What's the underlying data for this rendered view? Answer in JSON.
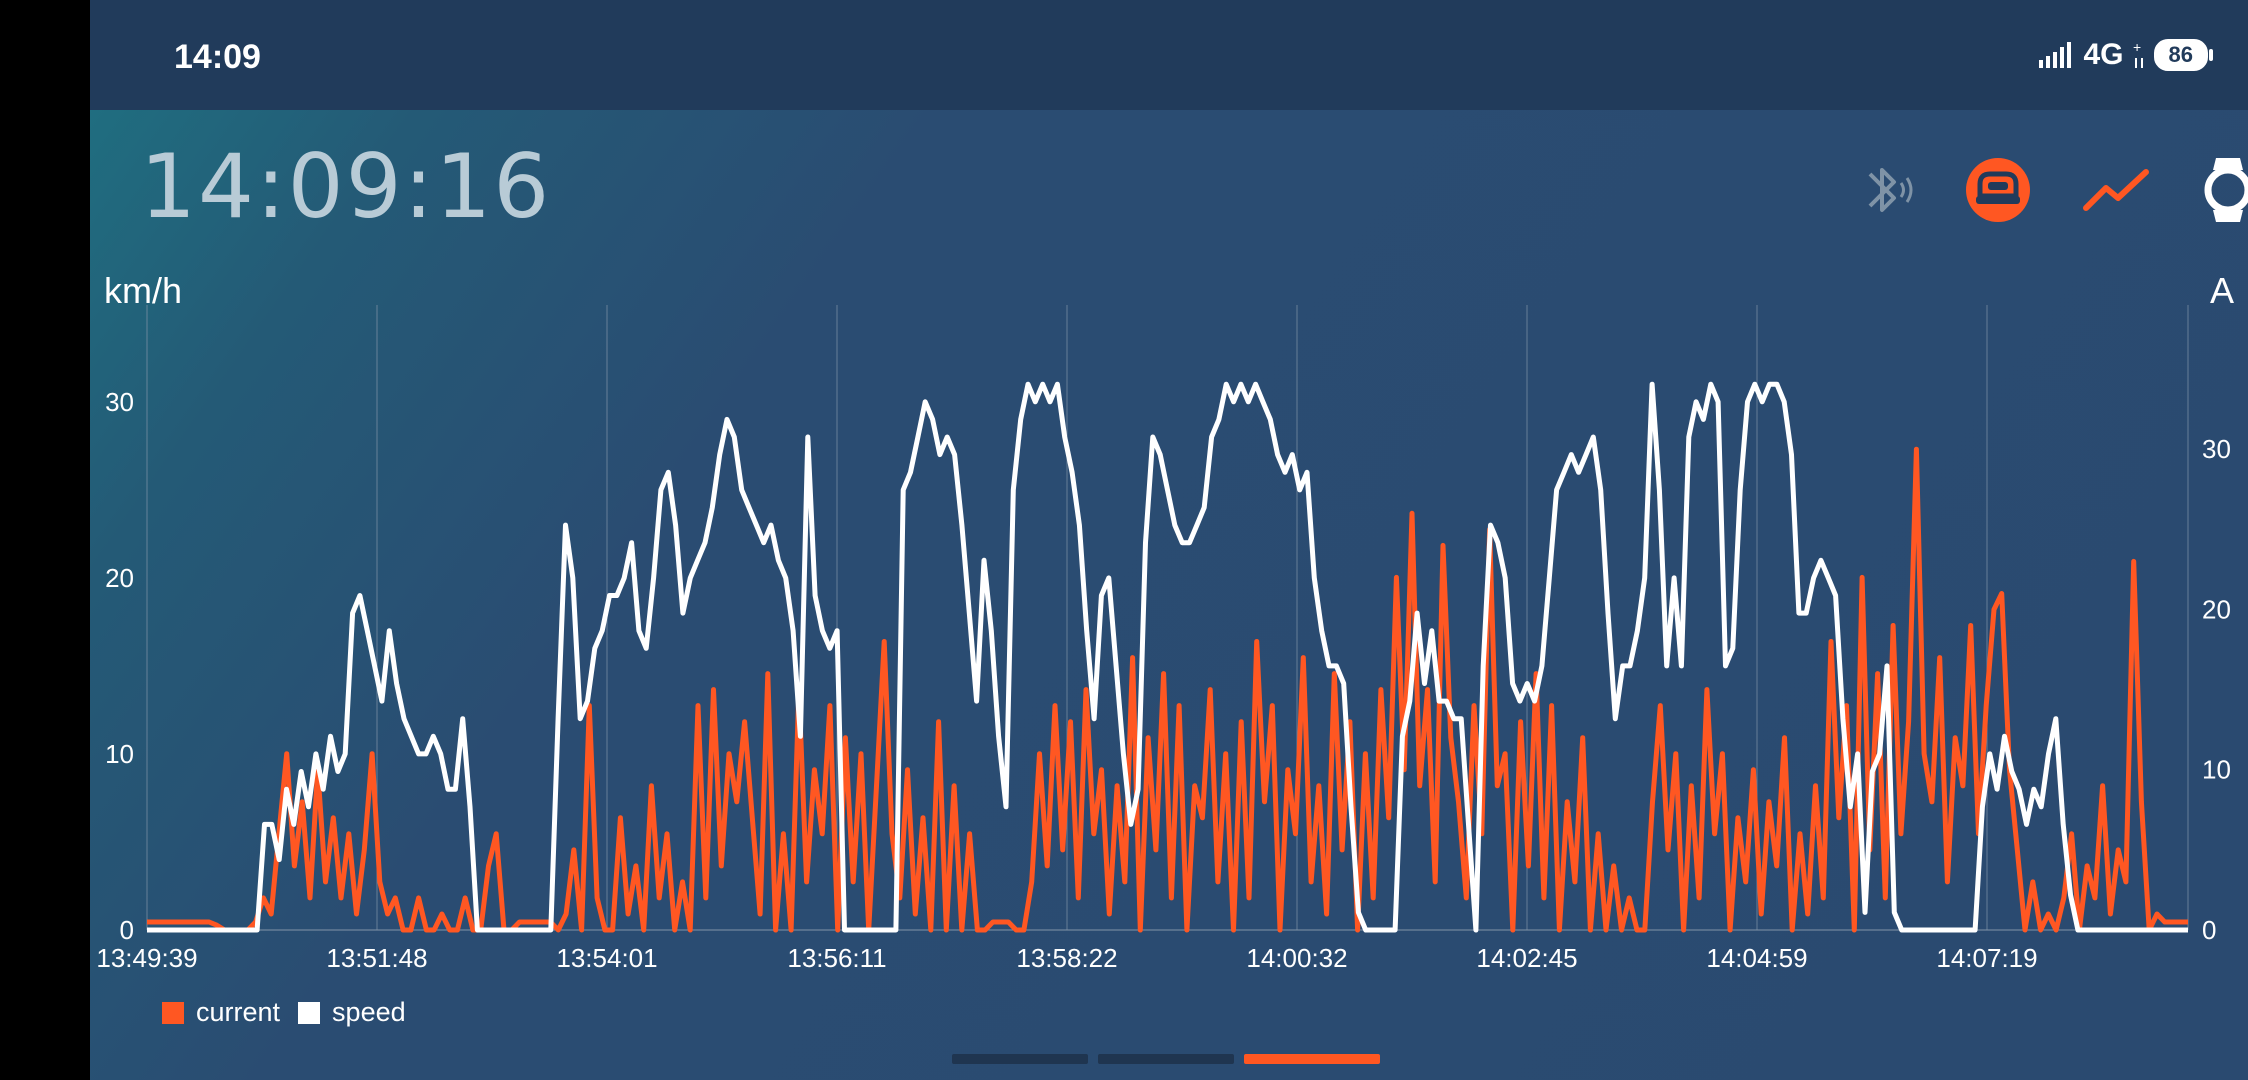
{
  "status_bar": {
    "time": "14:09",
    "network": "4G",
    "battery": "86"
  },
  "header": {
    "clock": "14:09:16"
  },
  "icons": {
    "bluetooth": "bluetooth-icon",
    "ride": "wheel-icon",
    "chart": "chart-icon",
    "watch": "watch-icon"
  },
  "colors": {
    "current": "#ff5722",
    "speed": "#ffffff",
    "background": "#2a4a70",
    "status_bar": "#213b5b"
  },
  "chart_data": {
    "type": "line",
    "ylabel_left": "km/h",
    "ylabel_right": "A",
    "x_ticks": [
      "13:49:39",
      "13:51:48",
      "13:54:01",
      "13:56:11",
      "13:58:22",
      "14:00:32",
      "14:02:45",
      "14:04:59",
      "14:07:19"
    ],
    "ylim_left": [
      0,
      35.5
    ],
    "ylim_right": [
      0,
      39
    ],
    "yticks_left": [
      0,
      10,
      20,
      30
    ],
    "yticks_right": [
      0,
      10,
      20,
      30
    ],
    "grid": "vertical",
    "legend": "bottom-left",
    "series": [
      {
        "name": "current",
        "axis": "right",
        "values": [
          0.5,
          0.5,
          0.5,
          0.5,
          0.5,
          0.5,
          0.5,
          0.5,
          0.5,
          0.3,
          0,
          0,
          0,
          0,
          0.5,
          2,
          1,
          6,
          11,
          4,
          8,
          2,
          10,
          3,
          7,
          2,
          6,
          1,
          5,
          11,
          3,
          1,
          2,
          0,
          0,
          2,
          0,
          0,
          1,
          0,
          0,
          2,
          0,
          0,
          4,
          6,
          0,
          0,
          0.5,
          0.5,
          0.5,
          0.5,
          0.5,
          0,
          1,
          5,
          0,
          14,
          2,
          0,
          0,
          7,
          1,
          4,
          0,
          9,
          2,
          6,
          0,
          3,
          0,
          14,
          2,
          15,
          4,
          11,
          8,
          13,
          7,
          1,
          16,
          0,
          6,
          0,
          15,
          3,
          10,
          6,
          14,
          0,
          12,
          3,
          11,
          0,
          9,
          18,
          6,
          2,
          10,
          1,
          7,
          0,
          13,
          0,
          9,
          0,
          6,
          0,
          0,
          0.5,
          0.5,
          0.5,
          0,
          0,
          3,
          11,
          4,
          14,
          5,
          13,
          2,
          15,
          6,
          10,
          1,
          9,
          3,
          17,
          0,
          12,
          5,
          16,
          2,
          14,
          0,
          9,
          7,
          15,
          3,
          11,
          0,
          13,
          2,
          18,
          8,
          14,
          0,
          10,
          6,
          17,
          3,
          9,
          1,
          16,
          5,
          13,
          0,
          11,
          2,
          15,
          7,
          22,
          10,
          26,
          9,
          15,
          3,
          24,
          12,
          8,
          2,
          14,
          6,
          25,
          9,
          11,
          0,
          13,
          4,
          16,
          2,
          14,
          0,
          8,
          3,
          12,
          0,
          6,
          0,
          4,
          0,
          2,
          0,
          0,
          8,
          14,
          5,
          11,
          0,
          9,
          2,
          15,
          6,
          11,
          0,
          7,
          3,
          10,
          1,
          8,
          4,
          12,
          0,
          6,
          1,
          9,
          2,
          18,
          7,
          14,
          0,
          22,
          5,
          16,
          2,
          19,
          6,
          13,
          30,
          11,
          8,
          17,
          3,
          12,
          9,
          19,
          6,
          14,
          20,
          21,
          10,
          5,
          0,
          3,
          0,
          1,
          0,
          2,
          6,
          0,
          4,
          2,
          9,
          1,
          5,
          3,
          23,
          8,
          0,
          1,
          0.5,
          0.5,
          0.5,
          0.5
        ]
      },
      {
        "name": "speed",
        "axis": "left",
        "values": [
          0,
          0,
          0,
          0,
          0,
          0,
          0,
          0,
          0,
          0,
          0,
          0,
          0,
          0,
          0,
          0,
          6,
          6,
          4,
          8,
          6,
          9,
          7,
          10,
          8,
          11,
          9,
          10,
          18,
          19,
          17,
          15,
          13,
          17,
          14,
          12,
          11,
          10,
          10,
          11,
          10,
          8,
          8,
          12,
          7,
          0,
          0,
          0,
          0,
          0,
          0,
          0,
          0,
          0,
          0,
          0,
          12,
          23,
          20,
          12,
          13,
          16,
          17,
          19,
          19,
          20,
          22,
          17,
          16,
          20,
          25,
          26,
          23,
          18,
          20,
          21,
          22,
          24,
          27,
          29,
          28,
          25,
          24,
          23,
          22,
          23,
          21,
          20,
          17,
          11,
          28,
          19,
          17,
          16,
          17,
          0,
          0,
          0,
          0,
          0,
          0,
          0,
          0,
          25,
          26,
          28,
          30,
          29,
          27,
          28,
          27,
          23,
          18,
          13,
          21,
          17,
          11,
          7,
          25,
          29,
          31,
          30,
          31,
          30,
          31,
          28,
          26,
          23,
          17,
          12,
          19,
          20,
          15,
          10,
          6,
          8,
          22,
          28,
          27,
          25,
          23,
          22,
          22,
          23,
          24,
          28,
          29,
          31,
          30,
          31,
          30,
          31,
          30,
          29,
          27,
          26,
          27,
          25,
          26,
          20,
          17,
          15,
          15,
          14,
          7,
          1,
          0,
          0,
          0,
          0,
          0,
          11,
          13,
          18,
          14,
          17,
          13,
          13,
          12,
          12,
          6,
          0,
          15,
          23,
          22,
          20,
          14,
          13,
          14,
          13,
          15,
          20,
          25,
          26,
          27,
          26,
          27,
          28,
          25,
          18,
          12,
          15,
          15,
          17,
          20,
          31,
          25,
          15,
          20,
          15,
          28,
          30,
          29,
          31,
          30,
          15,
          16,
          25,
          30,
          31,
          30,
          31,
          31,
          30,
          27,
          18,
          18,
          20,
          21,
          20,
          19,
          12,
          7,
          10,
          1,
          9,
          10,
          15,
          1,
          0,
          0,
          0,
          0,
          0,
          0,
          0,
          0,
          0,
          0,
          0,
          7,
          10,
          8,
          11,
          9,
          8,
          6,
          8,
          7,
          10,
          12,
          6,
          2,
          0,
          0,
          0,
          0,
          0,
          0,
          0,
          0,
          0,
          0,
          0,
          0,
          0,
          0,
          0,
          0
        ]
      }
    ]
  },
  "legend": {
    "items": [
      {
        "label": "current",
        "color": "#ff5722"
      },
      {
        "label": "speed",
        "color": "#ffffff"
      }
    ]
  }
}
